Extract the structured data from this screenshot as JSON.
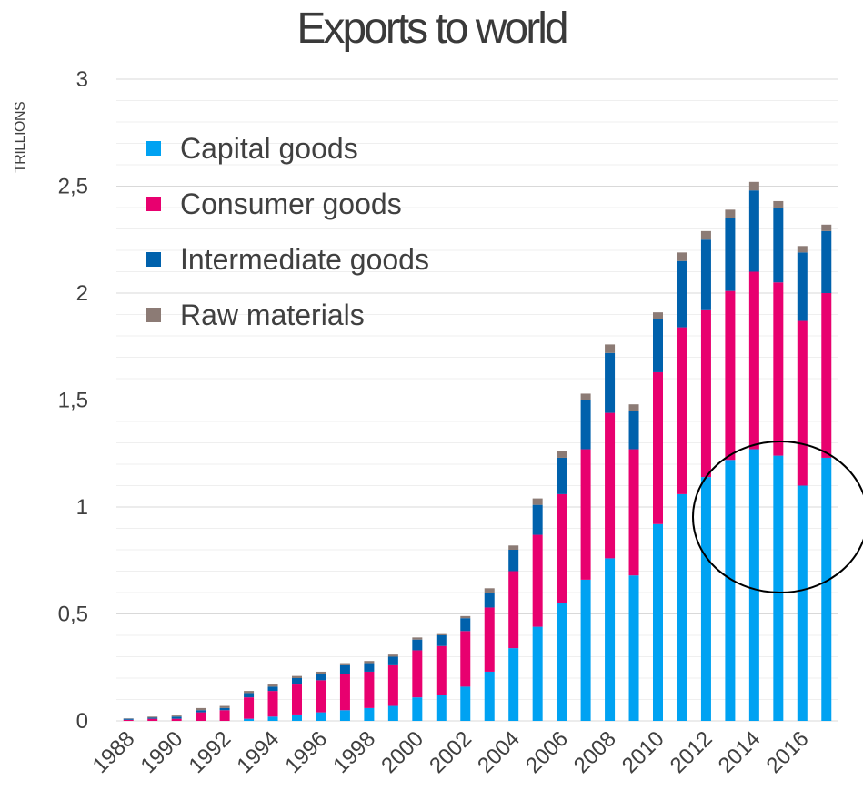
{
  "chart_data": {
    "type": "bar",
    "stacked": true,
    "title": "Exports to world",
    "ylabel": "TRILLIONS",
    "xlabel": "",
    "ylim": [
      0,
      3
    ],
    "yticks": [
      "0",
      "0,5",
      "1",
      "1,5",
      "2",
      "2,5",
      "3"
    ],
    "ytick_values": [
      0,
      0.5,
      1,
      1.5,
      2,
      2.5,
      3
    ],
    "grid": true,
    "legend_position": "top-left",
    "categories": [
      "1988",
      "1989",
      "1990",
      "1991",
      "1992",
      "1993",
      "1994",
      "1995",
      "1996",
      "1997",
      "1998",
      "1999",
      "2000",
      "2001",
      "2002",
      "2003",
      "2004",
      "2005",
      "2006",
      "2007",
      "2008",
      "2009",
      "2010",
      "2011",
      "2012",
      "2013",
      "2014",
      "2015",
      "2016",
      "2017"
    ],
    "xtick_labels": [
      "1988",
      "1990",
      "1992",
      "1994",
      "1996",
      "1998",
      "2000",
      "2002",
      "2004",
      "2006",
      "2008",
      "2010",
      "2012",
      "2014",
      "2016"
    ],
    "series": [
      {
        "name": "Capital goods",
        "color": "#00a2f2",
        "values": [
          0,
          0,
          0,
          0,
          0,
          0.01,
          0.02,
          0.03,
          0.04,
          0.05,
          0.06,
          0.07,
          0.11,
          0.12,
          0.16,
          0.23,
          0.34,
          0.44,
          0.55,
          0.66,
          0.76,
          0.68,
          0.92,
          1.06,
          1.14,
          1.22,
          1.27,
          1.24,
          1.1,
          1.23
        ]
      },
      {
        "name": "Consumer goods",
        "color": "#e8006f",
        "values": [
          0.005,
          0.01,
          0.01,
          0.04,
          0.05,
          0.1,
          0.12,
          0.14,
          0.15,
          0.17,
          0.17,
          0.19,
          0.22,
          0.23,
          0.26,
          0.3,
          0.36,
          0.43,
          0.51,
          0.61,
          0.68,
          0.59,
          0.71,
          0.78,
          0.78,
          0.79,
          0.83,
          0.81,
          0.77,
          0.77
        ]
      },
      {
        "name": "Intermediate goods",
        "color": "#0061ac",
        "values": [
          0.005,
          0.005,
          0.01,
          0.01,
          0.01,
          0.02,
          0.02,
          0.03,
          0.03,
          0.04,
          0.04,
          0.04,
          0.05,
          0.05,
          0.06,
          0.07,
          0.1,
          0.14,
          0.17,
          0.23,
          0.28,
          0.18,
          0.25,
          0.31,
          0.33,
          0.34,
          0.38,
          0.35,
          0.32,
          0.29
        ]
      },
      {
        "name": "Raw materials",
        "color": "#8c7b75",
        "values": [
          0.002,
          0.005,
          0.005,
          0.01,
          0.01,
          0.01,
          0.01,
          0.01,
          0.01,
          0.01,
          0.01,
          0.01,
          0.01,
          0.01,
          0.01,
          0.02,
          0.02,
          0.03,
          0.03,
          0.03,
          0.04,
          0.03,
          0.03,
          0.04,
          0.04,
          0.04,
          0.04,
          0.03,
          0.03,
          0.03
        ]
      }
    ]
  }
}
